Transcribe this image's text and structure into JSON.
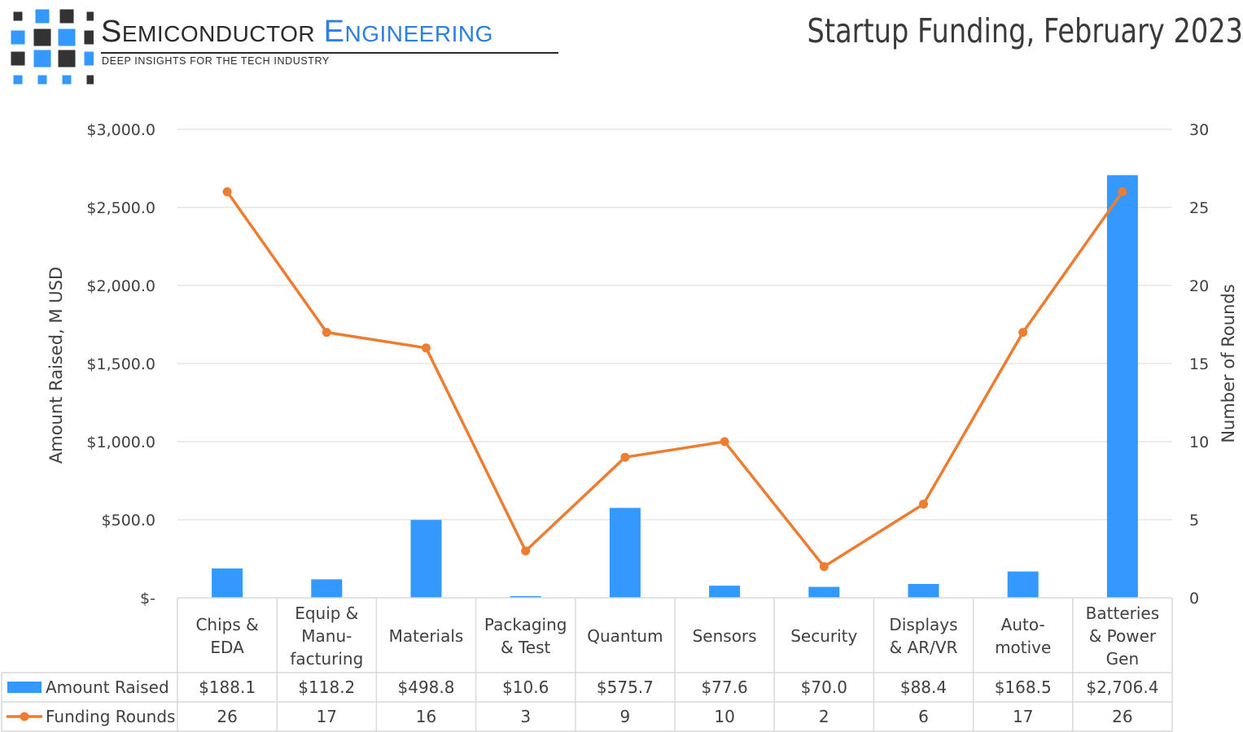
{
  "logo": {
    "name_part1": "Semiconductor",
    "name_part2": "Engineering",
    "tagline": "DEEP INSIGHTS FOR THE TECH INDUSTRY"
  },
  "colors": {
    "bar": "#3399ff",
    "line": "#ed7d31",
    "grid": "#d9d9d9",
    "table_border": "#d9d9d9",
    "logo_dark": "#333333",
    "logo_blue": "#3399ff"
  },
  "chart_data": {
    "type": "bar",
    "title": "Startup Funding, February 2023",
    "ylabel": "Amount Raised, M USD",
    "y2label": "Number of Rounds",
    "ylim": [
      0,
      3000
    ],
    "y2lim": [
      0,
      30
    ],
    "y_ticks": [
      "$-",
      "$500.0",
      "$1,000.0",
      "$1,500.0",
      "$2,000.0",
      "$2,500.0",
      "$3,000.0"
    ],
    "y2_ticks": [
      "0",
      "5",
      "10",
      "15",
      "20",
      "25",
      "30"
    ],
    "grid": true,
    "legend": "data-table",
    "categories": [
      [
        "Chips &",
        "EDA"
      ],
      [
        "Equip &",
        "Manu-",
        "facturing"
      ],
      [
        "Materials"
      ],
      [
        "Packaging",
        "& Test"
      ],
      [
        "Quantum"
      ],
      [
        "Sensors"
      ],
      [
        "Security"
      ],
      [
        "Displays",
        "& AR/VR"
      ],
      [
        "Auto-",
        "motive"
      ],
      [
        "Batteries",
        "& Power",
        "Gen"
      ]
    ],
    "series": [
      {
        "name": "Amount Raised",
        "type": "bar",
        "axis": "left",
        "values": [
          188.1,
          118.2,
          498.8,
          10.6,
          575.7,
          77.6,
          70.0,
          88.4,
          168.5,
          2706.4
        ],
        "labels": [
          "$188.1",
          "$118.2",
          "$498.8",
          "$10.6",
          "$575.7",
          "$77.6",
          "$70.0",
          "$88.4",
          "$168.5",
          "$2,706.4"
        ]
      },
      {
        "name": "Funding Rounds",
        "type": "line",
        "axis": "right",
        "values": [
          26,
          17,
          16,
          3,
          9,
          10,
          2,
          6,
          17,
          26
        ],
        "labels": [
          "26",
          "17",
          "16",
          "3",
          "9",
          "10",
          "2",
          "6",
          "17",
          "26"
        ]
      }
    ]
  }
}
